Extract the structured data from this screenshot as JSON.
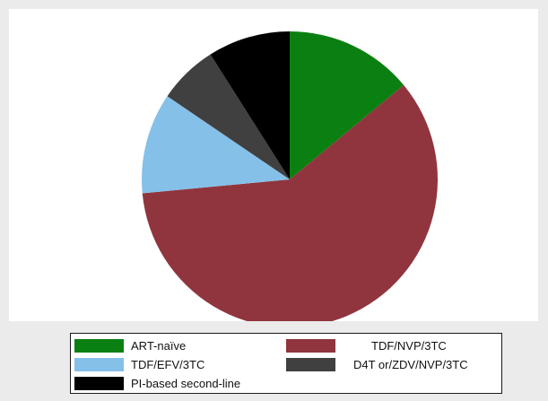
{
  "chart_data": {
    "type": "pie",
    "slices": [
      {
        "label": "ART-naïve",
        "value": 14.0,
        "color": "#0b8012"
      },
      {
        "label": "TDF/NVP/3TC",
        "value": 59.5,
        "color": "#90353d"
      },
      {
        "label": "TDF/EFV/3TC",
        "value": 11.0,
        "color": "#85c0e9"
      },
      {
        "label": "D4T or/ZDV/NVP/3TC",
        "value": 6.5,
        "color": "#404040"
      },
      {
        "label": "PI-based second-line",
        "value": 9.0,
        "color": "#000000"
      }
    ],
    "start_angle_deg": 90,
    "direction": "clockwise",
    "legend_position": "bottom"
  },
  "legend": {
    "items": [
      {
        "label": "ART-naïve",
        "color": "#0b8012"
      },
      {
        "label": "TDF/NVP/3TC",
        "color": "#90353d"
      },
      {
        "label": "TDF/EFV/3TC",
        "color": "#85c0e9"
      },
      {
        "label": "D4T or/ZDV/NVP/3TC",
        "color": "#404040"
      },
      {
        "label": "PI-based second-line",
        "color": "#000000"
      }
    ]
  }
}
